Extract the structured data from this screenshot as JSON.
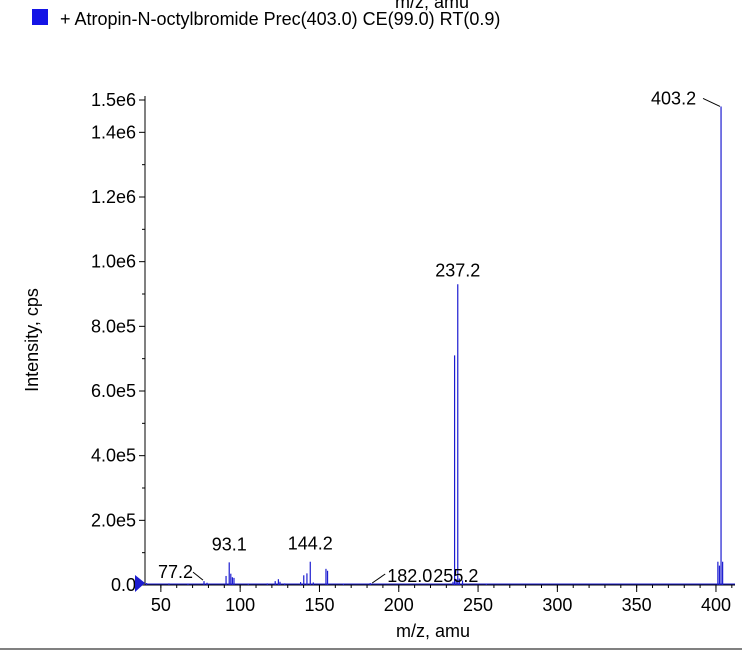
{
  "header": {
    "top_axis_label_cut": "m/z, amu",
    "legend_swatch_color": "#1414e6"
  },
  "chart_data": {
    "type": "bar",
    "legend": [
      "+ Atropin-N-octylbromide Prec(403.0) CE(99.0) RT(0.9)"
    ],
    "xlabel": "m/z, amu",
    "ylabel": "Intensity, cps",
    "xlim": [
      40,
      412
    ],
    "ylim": [
      0,
      1500000
    ],
    "x_ticks": [
      "50",
      "100",
      "150",
      "200",
      "250",
      "300",
      "350",
      "400"
    ],
    "y_ticks": [
      "0.0",
      "2.0e5",
      "4.0e5",
      "6.0e5",
      "8.0e5",
      "1.0e6",
      "1.2e6",
      "1.4e6",
      "1.5e6"
    ],
    "series_color": "#1c1cd0",
    "peaks": [
      {
        "mz": 41.0,
        "intensity": 6000
      },
      {
        "mz": 55.1,
        "intensity": 5000
      },
      {
        "mz": 67.1,
        "intensity": 4000
      },
      {
        "mz": 77.2,
        "intensity": 12000
      },
      {
        "mz": 79.1,
        "intensity": 7000
      },
      {
        "mz": 91.1,
        "intensity": 28000
      },
      {
        "mz": 93.1,
        "intensity": 70000
      },
      {
        "mz": 94.1,
        "intensity": 35000
      },
      {
        "mz": 95.1,
        "intensity": 24000
      },
      {
        "mz": 96.1,
        "intensity": 22000
      },
      {
        "mz": 105.1,
        "intensity": 4000
      },
      {
        "mz": 117.1,
        "intensity": 5000
      },
      {
        "mz": 122.1,
        "intensity": 12000
      },
      {
        "mz": 124.1,
        "intensity": 18000
      },
      {
        "mz": 125.1,
        "intensity": 10000
      },
      {
        "mz": 128.1,
        "intensity": 5000
      },
      {
        "mz": 138.1,
        "intensity": 9000
      },
      {
        "mz": 140.1,
        "intensity": 30000
      },
      {
        "mz": 142.1,
        "intensity": 36000
      },
      {
        "mz": 144.2,
        "intensity": 72000
      },
      {
        "mz": 146.1,
        "intensity": 8000
      },
      {
        "mz": 154.1,
        "intensity": 50000
      },
      {
        "mz": 155.1,
        "intensity": 44000
      },
      {
        "mz": 165.1,
        "intensity": 4000
      },
      {
        "mz": 182.0,
        "intensity": 6000
      },
      {
        "mz": 234.2,
        "intensity": 10000
      },
      {
        "mz": 235.2,
        "intensity": 710000
      },
      {
        "mz": 236.2,
        "intensity": 18000
      },
      {
        "mz": 237.2,
        "intensity": 930000
      },
      {
        "mz": 238.2,
        "intensity": 20000
      },
      {
        "mz": 240.2,
        "intensity": 14000
      },
      {
        "mz": 255.2,
        "intensity": 3000
      },
      {
        "mz": 401.2,
        "intensity": 72000
      },
      {
        "mz": 402.2,
        "intensity": 60000
      },
      {
        "mz": 403.2,
        "intensity": 1480000
      },
      {
        "mz": 404.2,
        "intensity": 72000
      }
    ],
    "annotations": [
      "77.2",
      "93.1",
      "144.2",
      "182.0",
      "237.2",
      "255.2",
      "403.2"
    ]
  }
}
